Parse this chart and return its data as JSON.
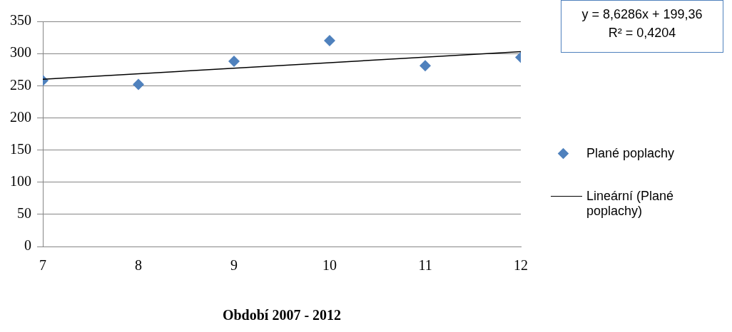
{
  "chart_data": {
    "type": "scatter",
    "xlabel": "Období 2007 - 2012",
    "x": [
      7,
      8,
      9,
      10,
      11,
      12
    ],
    "xlim": [
      7,
      12
    ],
    "xticks": [
      7,
      8,
      9,
      10,
      11,
      12
    ],
    "ylim": [
      0,
      350
    ],
    "yticks": [
      0,
      50,
      100,
      150,
      200,
      250,
      300,
      350
    ],
    "grid": "y",
    "legend": "right",
    "marker": "diamond",
    "series": [
      {
        "name": "Plané poplachy",
        "color": "#4f81bd",
        "values": [
          258,
          252,
          288,
          320,
          281,
          294
        ]
      },
      {
        "name": "Lineární (Plané poplachy)",
        "type": "line",
        "color": "#000000",
        "marker": "none",
        "x": [
          7,
          12
        ],
        "values": [
          260,
          303
        ]
      }
    ],
    "annotations": [
      "y = 8,6286x + 199,36",
      "R² = 0,4204"
    ]
  }
}
